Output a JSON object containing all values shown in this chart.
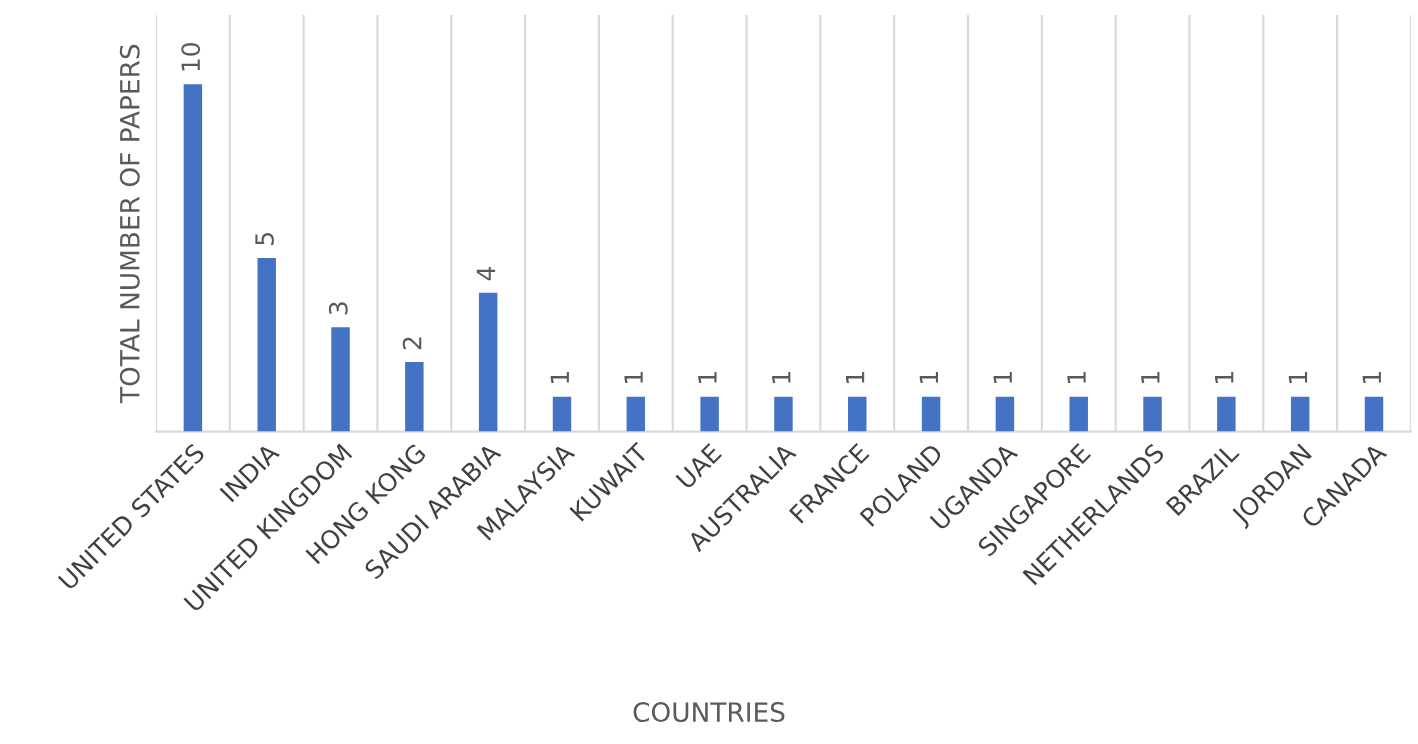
{
  "chart_data": {
    "type": "bar",
    "xlabel": "COUNTRIES",
    "ylabel": "TOTAL NUMBER OF PAPERS",
    "categories": [
      "UNITED STATES",
      "INDIA",
      "UNITED KINGDOM",
      "HONG KONG",
      "SAUDI ARABIA",
      "MALAYSIA",
      "KUWAIT",
      "UAE",
      "AUSTRALIA",
      "FRANCE",
      "POLAND",
      "UGANDA",
      "SINGAPORE",
      "NETHERLANDS",
      "BRAZIL",
      "JORDAN",
      "CANADA"
    ],
    "values": [
      10,
      5,
      3,
      2,
      4,
      1,
      1,
      1,
      1,
      1,
      1,
      1,
      1,
      1,
      1,
      1,
      1
    ],
    "color": "#4472c4",
    "data_labels": true,
    "grid": "x"
  }
}
